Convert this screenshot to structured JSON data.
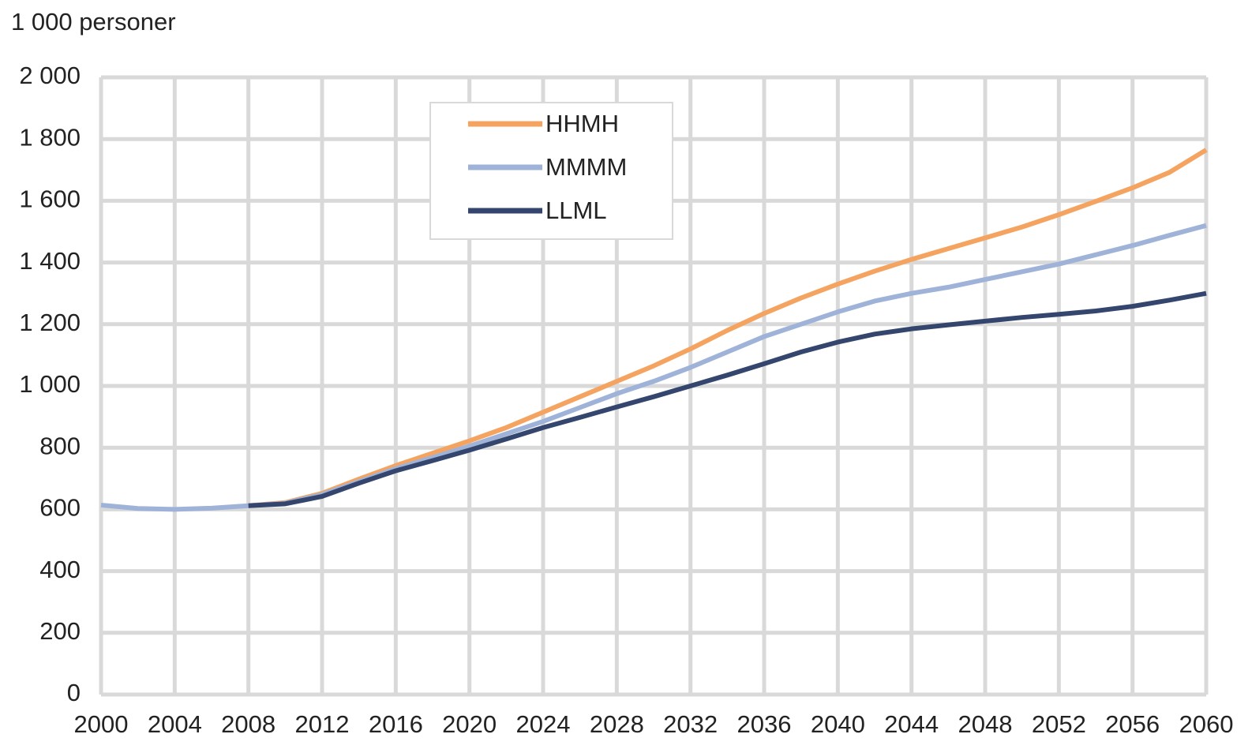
{
  "chart_data": {
    "type": "line",
    "y_label": "1 000 personer",
    "x": [
      2000,
      2002,
      2004,
      2006,
      2008,
      2010,
      2012,
      2014,
      2016,
      2018,
      2020,
      2022,
      2024,
      2026,
      2028,
      2030,
      2032,
      2034,
      2036,
      2038,
      2040,
      2042,
      2044,
      2046,
      2048,
      2050,
      2052,
      2054,
      2056,
      2058,
      2060
    ],
    "series": [
      {
        "name": "HHMH",
        "color": "#f4a460",
        "values": [
          null,
          null,
          null,
          null,
          612,
          622,
          652,
          698,
          742,
          782,
          822,
          865,
          915,
          965,
          1015,
          1065,
          1120,
          1180,
          1235,
          1285,
          1330,
          1372,
          1410,
          1445,
          1480,
          1515,
          1555,
          1598,
          1642,
          1692,
          1765
        ]
      },
      {
        "name": "MMMM",
        "color": "#9fb3d9",
        "values": [
          614,
          603,
          600,
          604,
          612,
          620,
          648,
          690,
          732,
          768,
          805,
          845,
          885,
          930,
          975,
          1015,
          1060,
          1110,
          1160,
          1200,
          1240,
          1275,
          1300,
          1320,
          1345,
          1370,
          1395,
          1425,
          1455,
          1488,
          1520
        ]
      },
      {
        "name": "LLML",
        "color": "#34466e",
        "values": [
          null,
          null,
          null,
          null,
          612,
          618,
          642,
          685,
          725,
          758,
          792,
          828,
          865,
          898,
          932,
          965,
          1000,
          1035,
          1072,
          1110,
          1142,
          1168,
          1185,
          1198,
          1210,
          1222,
          1232,
          1243,
          1258,
          1278,
          1300
        ]
      }
    ],
    "xlim": [
      2000,
      2060
    ],
    "xticks": [
      2000,
      2004,
      2008,
      2012,
      2016,
      2020,
      2024,
      2028,
      2032,
      2036,
      2040,
      2044,
      2048,
      2052,
      2056,
      2060
    ],
    "ylim": [
      0,
      2000
    ],
    "yticks": [
      0,
      200,
      400,
      600,
      800,
      {
        "value": 1000,
        "label": "1 000"
      },
      {
        "value": 1200,
        "label": "1 200"
      },
      {
        "value": 1400,
        "label": "1 400"
      },
      {
        "value": 1600,
        "label": "1 600"
      },
      {
        "value": 1800,
        "label": "1 800"
      },
      {
        "value": 2000,
        "label": "2 000"
      }
    ],
    "grid": true,
    "legend": "upper center"
  }
}
